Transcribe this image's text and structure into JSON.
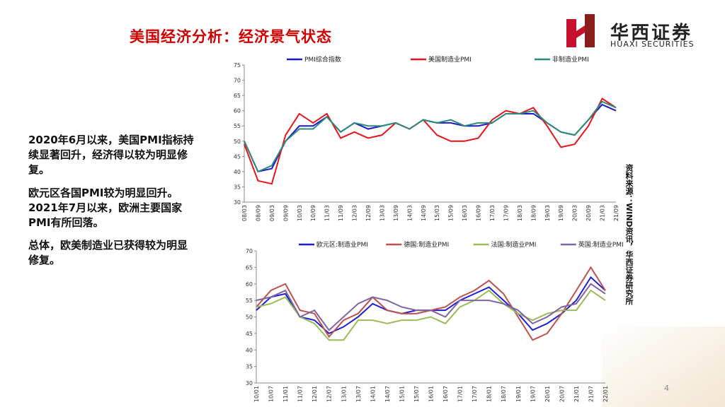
{
  "header": {
    "title": "美国经济分析：经济景气状态",
    "logo_cn": "华西证券",
    "logo_en": "HUAXI SECURITIES"
  },
  "paragraphs": [
    "2020年6月以来，美国PMI指标持续显著回升，经济得以较为明显修复。",
    "欧元区各国PMI较为明显回升。2021年7月以来，欧洲主要国家PMI有所回落。",
    "总体，欧美制造业已获得较为明显修复。"
  ],
  "source": "资料来源：WIND资讯，华西证券研究所",
  "page_number": "4",
  "chart_data": [
    {
      "type": "line",
      "ylim": [
        30,
        75
      ],
      "yticks": [
        30,
        35,
        40,
        45,
        50,
        55,
        60,
        65,
        70,
        75
      ],
      "categories": [
        "08/03",
        "08/09",
        "09/03",
        "09/09",
        "10/03",
        "10/09",
        "11/03",
        "11/09",
        "12/03",
        "12/09",
        "13/03",
        "13/09",
        "14/03",
        "14/09",
        "15/03",
        "15/09",
        "16/03",
        "16/09",
        "17/03",
        "17/09",
        "18/03",
        "18/09",
        "19/03",
        "19/09",
        "20/03",
        "20/09",
        "21/03",
        "21/09"
      ],
      "series": [
        {
          "name": "PMI综合指数",
          "color": "#1a1ad0",
          "values": [
            50,
            40,
            41,
            50,
            55,
            55,
            58,
            53,
            56,
            54,
            55,
            56,
            54,
            57,
            56,
            56,
            55,
            55,
            56,
            59,
            59,
            59,
            56,
            53,
            52,
            57,
            62,
            60
          ]
        },
        {
          "name": "美国制造业PMI",
          "color": "#e8141a",
          "values": [
            49,
            37,
            36,
            52,
            59,
            56,
            59,
            51,
            53,
            51,
            52,
            56,
            54,
            57,
            52,
            50,
            50,
            51,
            57,
            60,
            59,
            61,
            55,
            48,
            49,
            55,
            64,
            61
          ]
        },
        {
          "name": "非制造业PMI",
          "color": "#2e8b78",
          "values": [
            50,
            40,
            42,
            50,
            54,
            54,
            58,
            53,
            56,
            55,
            55,
            56,
            54,
            57,
            56,
            57,
            55,
            56,
            56,
            59,
            59,
            60,
            56,
            53,
            52,
            57,
            63,
            61
          ]
        }
      ]
    },
    {
      "type": "line",
      "ylim": [
        30,
        70
      ],
      "yticks": [
        30,
        35,
        40,
        45,
        50,
        55,
        60,
        65,
        70
      ],
      "categories": [
        "10/01",
        "10/07",
        "11/01",
        "11/07",
        "12/01",
        "12/07",
        "13/01",
        "13/07",
        "14/01",
        "14/07",
        "15/01",
        "15/07",
        "16/01",
        "16/07",
        "17/01",
        "17/07",
        "18/01",
        "18/07",
        "19/01",
        "19/07",
        "20/01",
        "20/07",
        "21/01",
        "21/07",
        "22/01"
      ],
      "series": [
        {
          "name": "欧元区:制造业PMI",
          "color": "#1f1fd8",
          "values": [
            52,
            56,
            57,
            50,
            49,
            45,
            47,
            50,
            54,
            52,
            51,
            52,
            52,
            52,
            55,
            57,
            59,
            55,
            51,
            46,
            48,
            51,
            55,
            62,
            58
          ]
        },
        {
          "name": "德国:制造业PMI",
          "color": "#c0504d",
          "values": [
            53,
            58,
            60,
            52,
            51,
            44,
            49,
            51,
            56,
            52,
            51,
            51,
            52,
            53,
            56,
            58,
            61,
            57,
            50,
            43,
            45,
            51,
            58,
            65,
            58
          ]
        },
        {
          "name": "法国:制造业PMI",
          "color": "#9bbb59",
          "values": [
            53,
            54,
            56,
            50,
            48,
            43,
            43,
            49,
            49,
            48,
            49,
            49,
            50,
            48,
            53,
            55,
            58,
            54,
            51,
            49,
            51,
            52,
            52,
            58,
            55
          ]
        },
        {
          "name": "英国:制造业PMI",
          "color": "#8064a2",
          "values": [
            55,
            56,
            58,
            50,
            52,
            46,
            50,
            54,
            56,
            55,
            53,
            52,
            52,
            50,
            55,
            55,
            55,
            54,
            52,
            48,
            50,
            53,
            54,
            60,
            57
          ]
        }
      ]
    }
  ]
}
